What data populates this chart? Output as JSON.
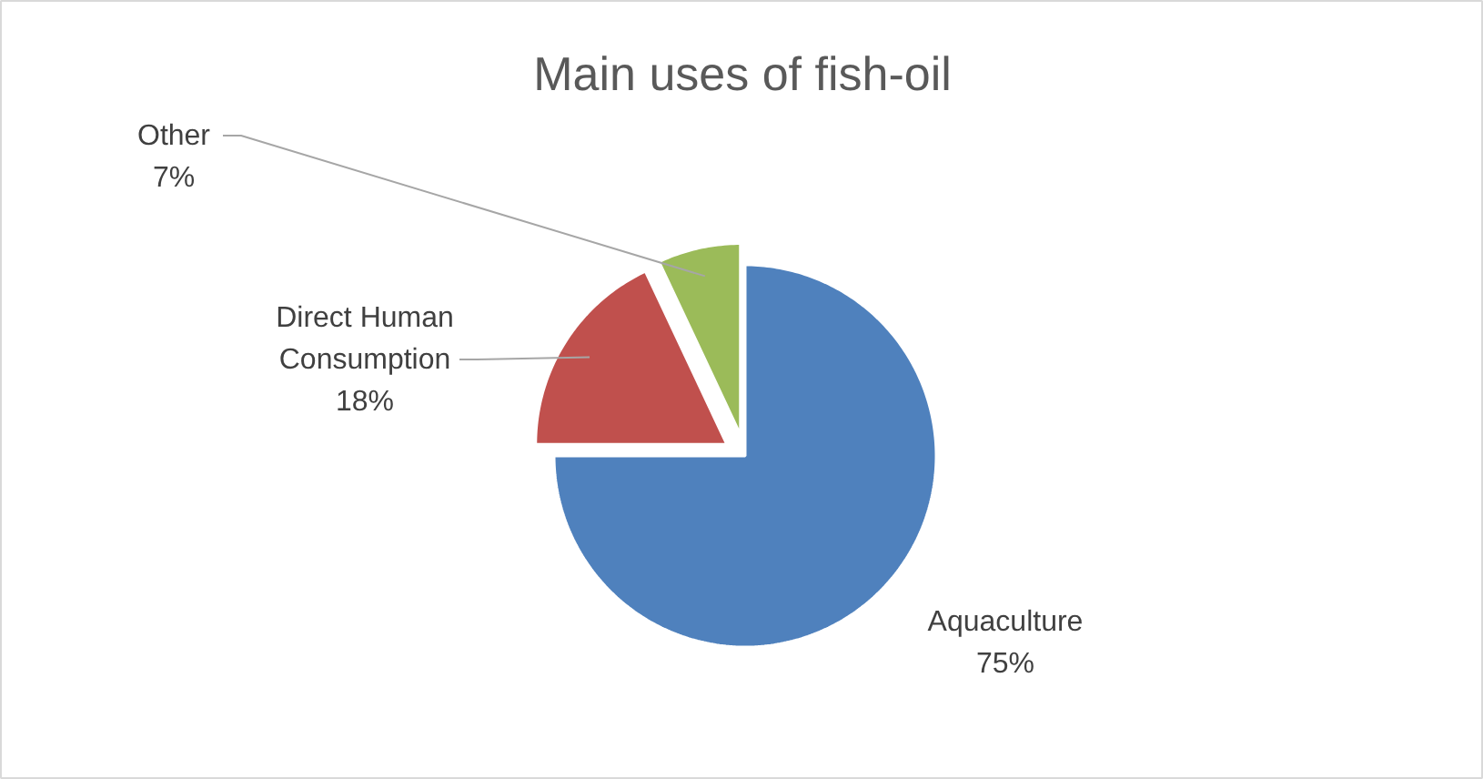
{
  "chart_data": {
    "type": "pie",
    "title": "Main uses of fish-oil",
    "categories": [
      "Aquaculture",
      "Direct Human Consumption",
      "Other"
    ],
    "values": [
      75,
      18,
      7
    ],
    "value_labels": [
      "75%",
      "18%",
      "7%"
    ],
    "colors": [
      "#4f81bd",
      "#c0504d",
      "#9bbb59"
    ]
  }
}
